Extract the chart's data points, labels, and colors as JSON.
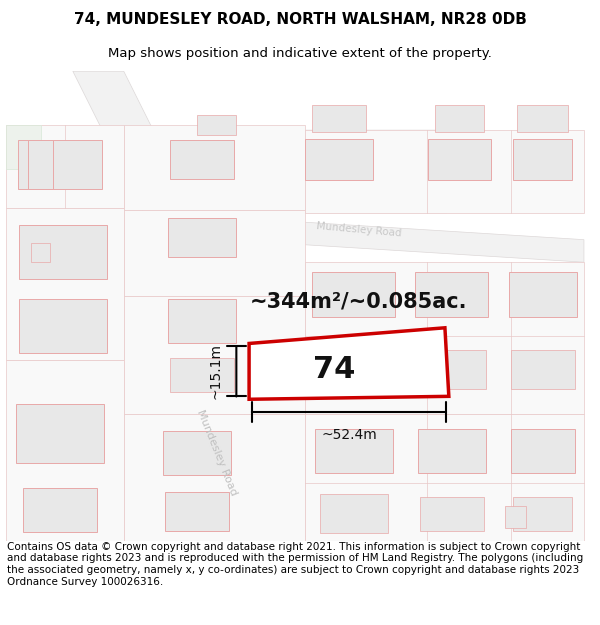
{
  "title_line1": "74, MUNDESLEY ROAD, NORTH WALSHAM, NR28 0DB",
  "title_line2": "Map shows position and indicative extent of the property.",
  "footer_text": "Contains OS data © Crown copyright and database right 2021. This information is subject to Crown copyright and database rights 2023 and is reproduced with the permission of HM Land Registry. The polygons (including the associated geometry, namely x, y co-ordinates) are subject to Crown copyright and database rights 2023 Ordnance Survey 100026316.",
  "area_label": "~344m²/~0.085ac.",
  "width_label": "~52.4m",
  "height_label": "~15.1m",
  "property_number": "74",
  "road_label_diag": "Mundesley Road",
  "road_label_top": "Mundesley Road",
  "map_bg": "#f9f9f9",
  "road_fill": "#f5f0f0",
  "road_outline": "#e8b8b8",
  "building_fill": "#e8e8e8",
  "building_outline": "#e8a8a8",
  "plot_outline": "#e8c8c8",
  "property_outline": "#cc0000",
  "property_fill": "#ffffff",
  "title_fontsize": 11,
  "subtitle_fontsize": 9.5,
  "footer_fontsize": 7.5
}
